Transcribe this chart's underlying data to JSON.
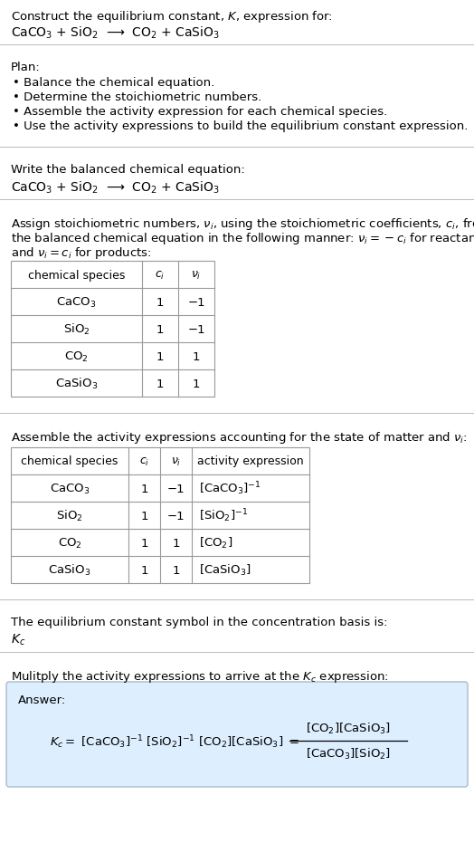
{
  "title_line1": "Construct the equilibrium constant, $K$, expression for:",
  "title_line2": "CaCO$_3$ + SiO$_2$  ⟶  CO$_2$ + CaSiO$_3$",
  "plan_header": "Plan:",
  "plan_bullets": [
    "• Balance the chemical equation.",
    "• Determine the stoichiometric numbers.",
    "• Assemble the activity expression for each chemical species.",
    "• Use the activity expressions to build the equilibrium constant expression."
  ],
  "balanced_header": "Write the balanced chemical equation:",
  "balanced_eq": "CaCO$_3$ + SiO$_2$  ⟶  CO$_2$ + CaSiO$_3$",
  "stoich_line1": "Assign stoichiometric numbers, $\\nu_i$, using the stoichiometric coefficients, $c_i$, from",
  "stoich_line2": "the balanced chemical equation in the following manner: $\\nu_i = -c_i$ for reactants",
  "stoich_line3": "and $\\nu_i = c_i$ for products:",
  "table1_headers": [
    "chemical species",
    "$c_i$",
    "$\\nu_i$"
  ],
  "table1_rows": [
    [
      "CaCO$_3$",
      "1",
      "−1"
    ],
    [
      "SiO$_2$",
      "1",
      "−1"
    ],
    [
      "CO$_2$",
      "1",
      "1"
    ],
    [
      "CaSiO$_3$",
      "1",
      "1"
    ]
  ],
  "activity_para": "Assemble the activity expressions accounting for the state of matter and $\\nu_i$:",
  "table2_headers": [
    "chemical species",
    "$c_i$",
    "$\\nu_i$",
    "activity expression"
  ],
  "table2_rows": [
    [
      "CaCO$_3$",
      "1",
      "−1",
      "[CaCO$_3$]$^{-1}$"
    ],
    [
      "SiO$_2$",
      "1",
      "−1",
      "[SiO$_2$]$^{-1}$"
    ],
    [
      "CO$_2$",
      "1",
      "1",
      "[CO$_2$]"
    ],
    [
      "CaSiO$_3$",
      "1",
      "1",
      "[CaSiO$_3$]"
    ]
  ],
  "kc_para": "The equilibrium constant symbol in the concentration basis is:",
  "kc_symbol": "$K_c$",
  "multiply_para": "Mulitply the activity expressions to arrive at the $K_c$ expression:",
  "answer_label": "Answer:",
  "bg_color": "#ffffff",
  "text_color": "#000000",
  "line_color": "#bbbbbb",
  "table_line_color": "#999999",
  "answer_bg": "#ddeeff",
  "answer_border": "#aabbcc",
  "font_size": 9.5,
  "figwidth": 5.24,
  "figheight": 9.53,
  "dpi": 100
}
